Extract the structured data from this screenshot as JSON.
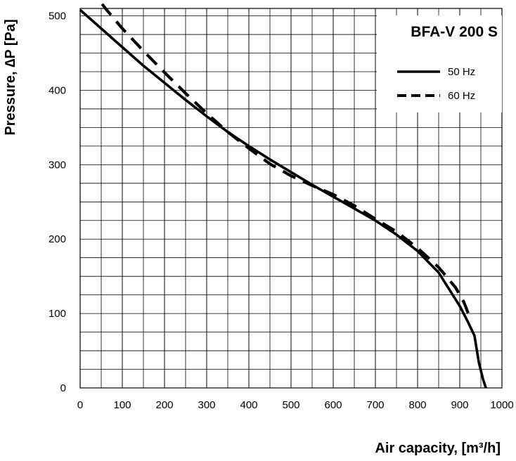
{
  "chart_data": {
    "type": "line",
    "title": "BFA-V 200 S",
    "xlabel": "Air capacity, [m³/h]",
    "ylabel": "Pressure, ∆P [Pa]",
    "xlim": [
      0,
      1000
    ],
    "ylim": [
      0,
      510
    ],
    "x_ticks": [
      "0",
      "100",
      "200",
      "300",
      "400",
      "500",
      "600",
      "700",
      "800",
      "900",
      "1000"
    ],
    "y_ticks": [
      "0",
      "100",
      "200",
      "300",
      "400",
      "500"
    ],
    "grid": true,
    "legend_position": "top-right",
    "series": [
      {
        "name": "50 Hz",
        "style": "solid",
        "points": [
          [
            0,
            508
          ],
          [
            50,
            483
          ],
          [
            100,
            458
          ],
          [
            150,
            433
          ],
          [
            200,
            410
          ],
          [
            250,
            387
          ],
          [
            300,
            365
          ],
          [
            350,
            344
          ],
          [
            400,
            325
          ],
          [
            450,
            307
          ],
          [
            500,
            290
          ],
          [
            550,
            273
          ],
          [
            600,
            257
          ],
          [
            650,
            241
          ],
          [
            700,
            225
          ],
          [
            750,
            206
          ],
          [
            800,
            184
          ],
          [
            850,
            155
          ],
          [
            900,
            110
          ],
          [
            920,
            88
          ],
          [
            935,
            70
          ],
          [
            945,
            35
          ],
          [
            955,
            12
          ],
          [
            962,
            0
          ]
        ]
      },
      {
        "name": "60 Hz",
        "style": "dashed",
        "points": [
          [
            20,
            540
          ],
          [
            60,
            510
          ],
          [
            100,
            483
          ],
          [
            150,
            453
          ],
          [
            200,
            424
          ],
          [
            250,
            396
          ],
          [
            300,
            369
          ],
          [
            350,
            344
          ],
          [
            400,
            322
          ],
          [
            450,
            301
          ],
          [
            500,
            285
          ],
          [
            550,
            272
          ],
          [
            600,
            260
          ],
          [
            650,
            245
          ],
          [
            700,
            227
          ],
          [
            750,
            210
          ],
          [
            800,
            188
          ],
          [
            850,
            162
          ],
          [
            890,
            135
          ],
          [
            910,
            115
          ],
          [
            925,
            93
          ]
        ]
      }
    ]
  }
}
